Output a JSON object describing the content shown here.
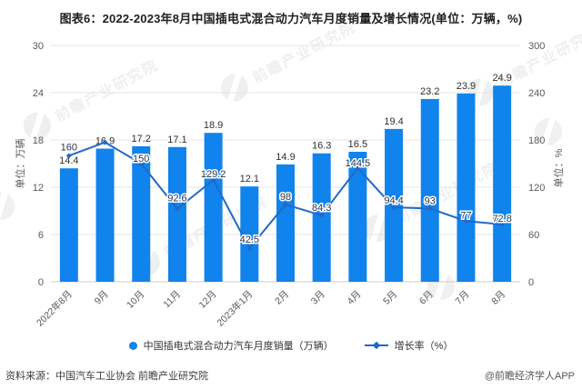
{
  "title": "图表6：2022-2023年8月中国插电式混合动力汽车月度销量及增长情况(单位：万辆，%)",
  "chart_data": {
    "type": "combo",
    "categories": [
      "2022年8月",
      "9月",
      "10月",
      "11月",
      "12月",
      "2023年1月",
      "2月",
      "3月",
      "4月",
      "5月",
      "6月",
      "7月",
      "8月"
    ],
    "series": [
      {
        "name": "中国插电式混合动力汽车月度销量（万辆）",
        "type": "bar",
        "axis": "left",
        "values": [
          14.4,
          16.9,
          17.2,
          17.1,
          18.9,
          12.1,
          14.9,
          16.3,
          16.5,
          19.4,
          23.2,
          23.9,
          24.9
        ]
      },
      {
        "name": "增长率（%）",
        "type": "line",
        "axis": "right",
        "values": [
          160,
          177,
          150,
          92.6,
          129.2,
          42.5,
          98,
          84.3,
          144.5,
          94.4,
          93,
          77,
          72.8
        ],
        "labels": [
          "160",
          null,
          "150",
          "92.6",
          "129.2",
          "42.5",
          "98",
          "84.3",
          "144.5",
          "94.4",
          "93",
          "77",
          "72.8"
        ]
      }
    ],
    "left_axis": {
      "title": "单位：万辆",
      "max": 30,
      "ticks": [
        0,
        6,
        12,
        18,
        24,
        30
      ]
    },
    "right_axis": {
      "title": "单位：%",
      "max": 300,
      "ticks": [
        0,
        60,
        120,
        180,
        240,
        300
      ]
    },
    "grid": true,
    "legend_position": "bottom"
  },
  "legend": {
    "bar_label": "中国插电式混合动力汽车月度销量（万辆）",
    "line_label": "增长率（%）"
  },
  "footer": {
    "source": "资料来源：中国汽车工业协会 前瞻产业研究院",
    "brand": "@前瞻经济学人APP"
  },
  "watermark": {
    "text": "前瞻产业研究院"
  },
  "colors": {
    "bar": "#1183ec",
    "line": "#2069c8",
    "grid": "#e4e4e4",
    "axis_line": "#cccccc",
    "axis_text": "#595959",
    "title": "#1f1f1f"
  }
}
